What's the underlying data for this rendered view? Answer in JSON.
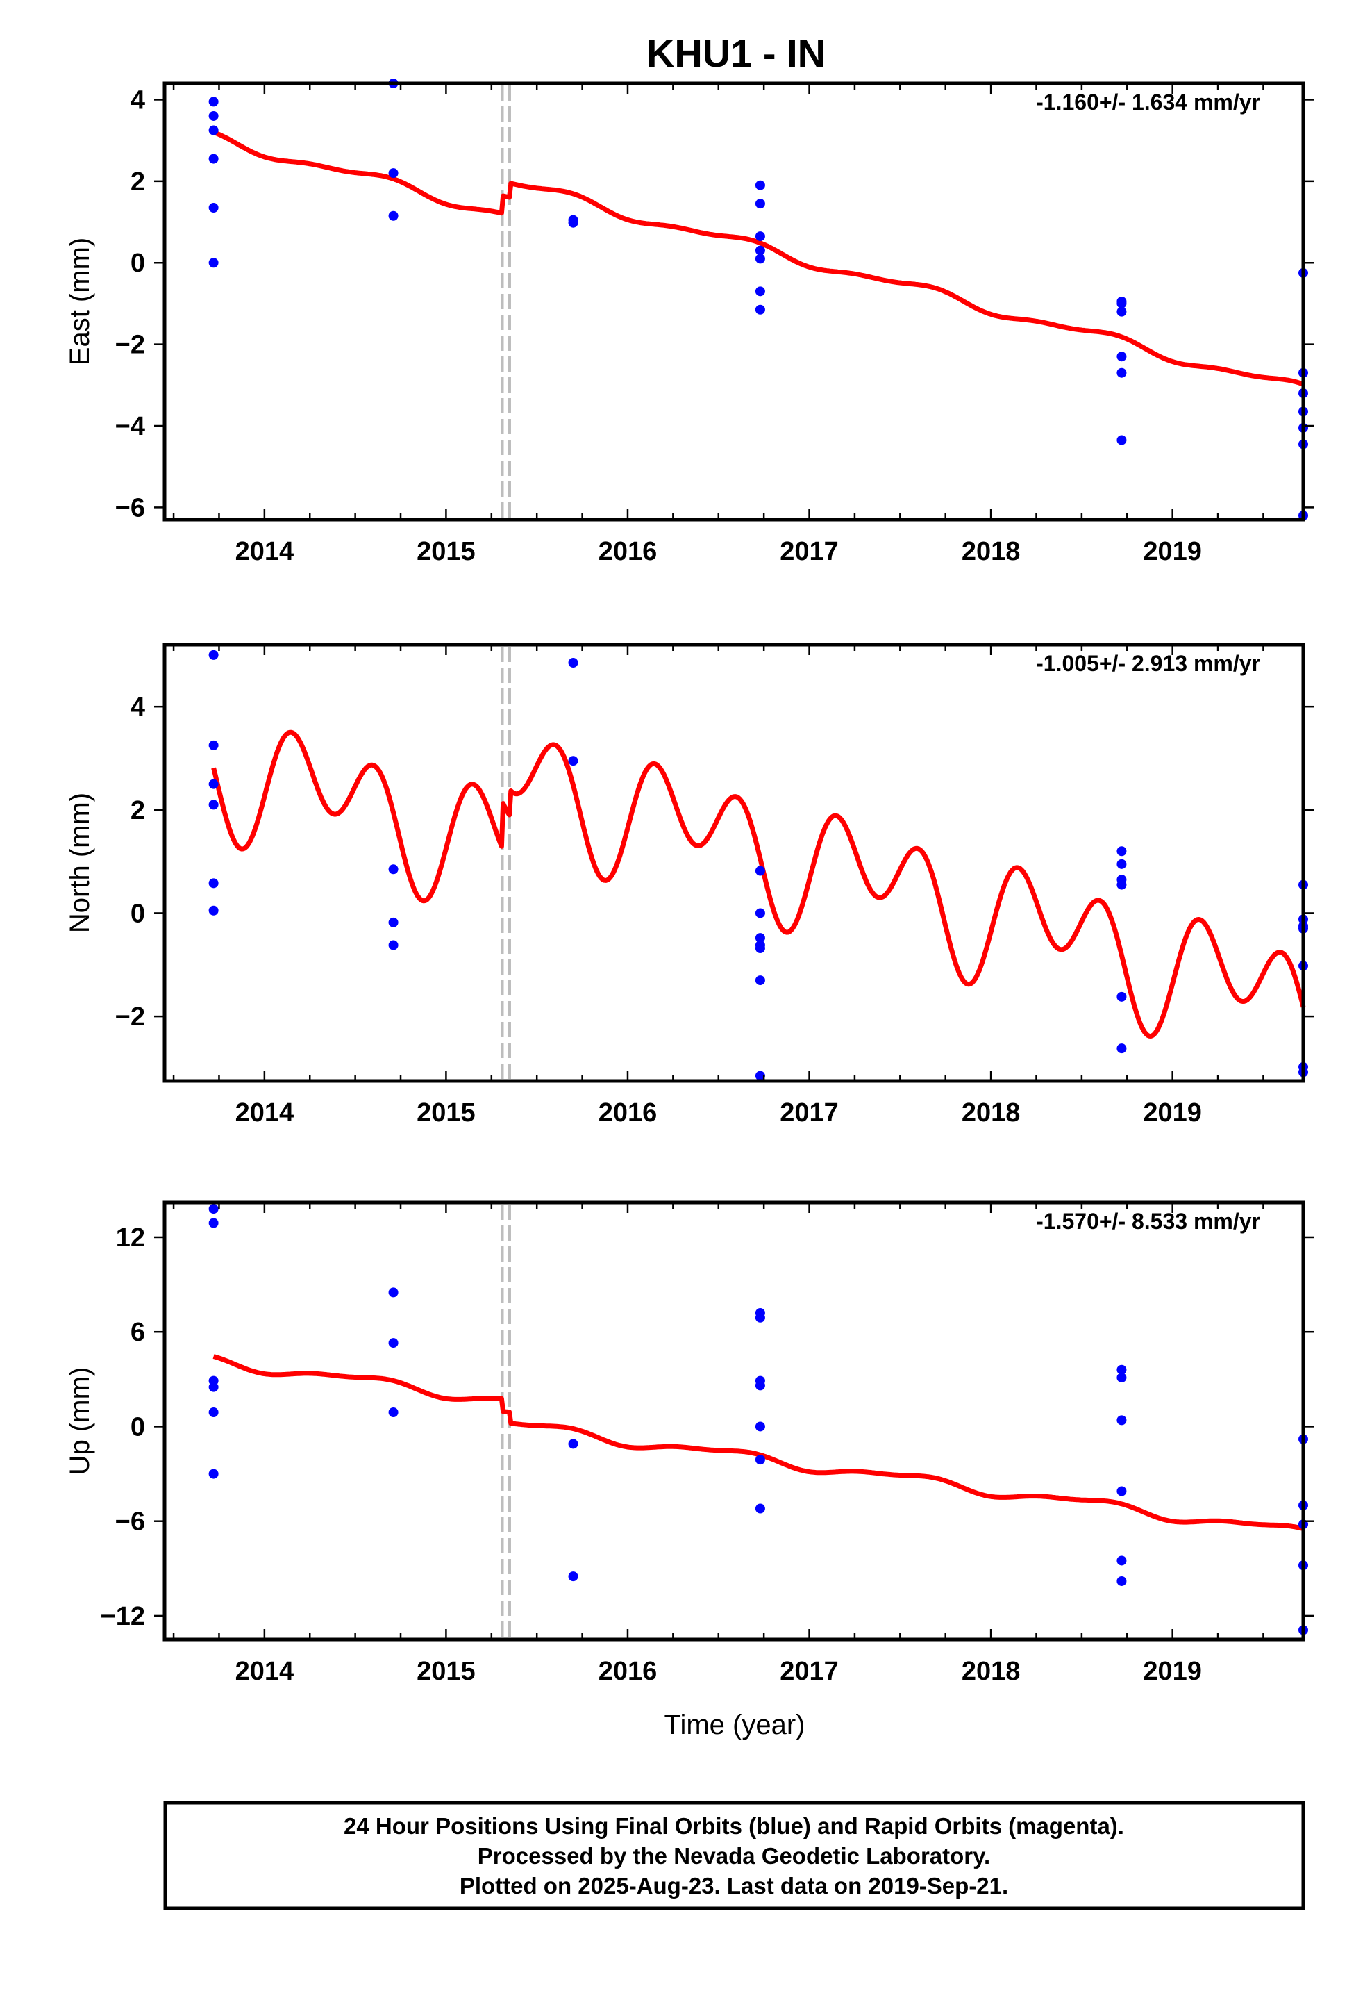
{
  "title": "KHU1 - IN",
  "x_axis_title": "Time (year)",
  "footer": {
    "line1": "24 Hour Positions Using Final Orbits (blue) and Rapid Orbits (magenta).",
    "line2": "Processed by the Nevada Geodetic Laboratory.",
    "line3": "Plotted on 2025-Aug-23. Last data on 2019-Sep-21."
  },
  "colors": {
    "data_points": "#0000ff",
    "model_line": "#ff0000",
    "offset_lines": "#bdbdbd"
  },
  "chart_data": [
    {
      "type": "scatter",
      "ylabel": "East (mm)",
      "rate": "-1.160+/- 1.634 mm/yr",
      "xlim": [
        2013.45,
        2019.72
      ],
      "ylim": [
        -6.3,
        4.4
      ],
      "xticks": [
        "2014",
        "2015",
        "2016",
        "2017",
        "2018",
        "2019"
      ],
      "yticks": [
        4,
        2,
        0,
        -2,
        -4,
        -6
      ],
      "ytick_labels": [
        "4",
        "2",
        "0",
        "−2",
        "−4",
        "−6"
      ],
      "grid": false,
      "offsets": [
        2015.31,
        2015.35
      ],
      "points": [
        [
          2013.72,
          3.95
        ],
        [
          2013.72,
          3.6
        ],
        [
          2013.72,
          3.25
        ],
        [
          2013.72,
          2.55
        ],
        [
          2013.72,
          1.35
        ],
        [
          2013.72,
          0.0
        ],
        [
          2014.71,
          4.4
        ],
        [
          2014.71,
          2.2
        ],
        [
          2014.71,
          1.15
        ],
        [
          2015.7,
          1.05
        ],
        [
          2015.7,
          0.98
        ],
        [
          2016.73,
          1.9
        ],
        [
          2016.73,
          1.45
        ],
        [
          2016.73,
          0.65
        ],
        [
          2016.73,
          0.3
        ],
        [
          2016.73,
          0.1
        ],
        [
          2016.73,
          -0.7
        ],
        [
          2016.73,
          -1.15
        ],
        [
          2018.72,
          -0.95
        ],
        [
          2018.72,
          -1.0
        ],
        [
          2018.72,
          -1.2
        ],
        [
          2018.72,
          -2.3
        ],
        [
          2018.72,
          -2.7
        ],
        [
          2018.72,
          -4.35
        ],
        [
          2019.72,
          -0.25
        ],
        [
          2019.72,
          -2.7
        ],
        [
          2019.72,
          -3.2
        ],
        [
          2019.72,
          -3.65
        ],
        [
          2019.72,
          -4.05
        ],
        [
          2019.72,
          -4.45
        ],
        [
          2019.72,
          -6.2
        ]
      ],
      "model": {
        "t_start": 2013.72,
        "t_end": 2019.72,
        "t_ref": 2016.0,
        "rate": -1.16,
        "segments": [
          {
            "from": 2013.72,
            "to": 2015.31,
            "offset": 0.42
          },
          {
            "from": 2015.31,
            "to": 2015.35,
            "offset": 0.85
          },
          {
            "from": 2015.35,
            "to": 2019.72,
            "offset": 1.2
          }
        ],
        "annual_amp": 0.12,
        "annual_phase": 0.35,
        "semi_amp": 0.05,
        "semi_phase": 0.1
      }
    },
    {
      "type": "scatter",
      "ylabel": "North (mm)",
      "rate": "-1.005+/- 2.913 mm/yr",
      "xlim": [
        2013.45,
        2019.72
      ],
      "ylim": [
        -3.25,
        5.2
      ],
      "xticks": [
        "2014",
        "2015",
        "2016",
        "2017",
        "2018",
        "2019"
      ],
      "yticks": [
        4,
        2,
        0,
        -2
      ],
      "ytick_labels": [
        "4",
        "2",
        "0",
        "−2"
      ],
      "grid": false,
      "offsets": [
        2015.31,
        2015.35
      ],
      "points": [
        [
          2013.72,
          5.0
        ],
        [
          2013.72,
          3.25
        ],
        [
          2013.72,
          2.5
        ],
        [
          2013.72,
          2.1
        ],
        [
          2013.72,
          0.58
        ],
        [
          2013.72,
          0.05
        ],
        [
          2014.71,
          0.85
        ],
        [
          2014.71,
          -0.18
        ],
        [
          2014.71,
          -0.62
        ],
        [
          2015.7,
          4.85
        ],
        [
          2015.7,
          2.95
        ],
        [
          2016.73,
          0.82
        ],
        [
          2016.73,
          0.0
        ],
        [
          2016.73,
          -0.48
        ],
        [
          2016.73,
          -0.62
        ],
        [
          2016.73,
          -0.68
        ],
        [
          2016.73,
          -1.3
        ],
        [
          2016.73,
          -3.15
        ],
        [
          2018.72,
          1.2
        ],
        [
          2018.72,
          0.95
        ],
        [
          2018.72,
          0.65
        ],
        [
          2018.72,
          0.55
        ],
        [
          2018.72,
          -1.62
        ],
        [
          2018.72,
          -2.62
        ],
        [
          2019.72,
          0.55
        ],
        [
          2019.72,
          -0.12
        ],
        [
          2019.72,
          -0.25
        ],
        [
          2019.72,
          -0.3
        ],
        [
          2019.72,
          -1.02
        ],
        [
          2019.72,
          -2.98
        ],
        [
          2019.72,
          -3.08
        ]
      ],
      "model": {
        "t_start": 2013.72,
        "t_end": 2019.72,
        "t_ref": 2016.0,
        "rate": -1.005,
        "segments": [
          {
            "from": 2013.72,
            "to": 2015.31,
            "offset": 0.6
          },
          {
            "from": 2015.31,
            "to": 2015.35,
            "offset": 1.5
          },
          {
            "from": 2015.35,
            "to": 2019.72,
            "offset": 2.0
          }
        ],
        "annual_amp": 0.6,
        "annual_phase": 0.1,
        "semi_amp": 0.9,
        "semi_phase": 0.0
      }
    },
    {
      "type": "scatter",
      "ylabel": "Up (mm)",
      "rate": "-1.570+/- 8.533 mm/yr",
      "xlim": [
        2013.45,
        2019.72
      ],
      "ylim": [
        -13.5,
        14.2
      ],
      "xticks": [
        "2014",
        "2015",
        "2016",
        "2017",
        "2018",
        "2019"
      ],
      "yticks": [
        12,
        6,
        0,
        -6,
        -12
      ],
      "ytick_labels": [
        "12",
        "6",
        "0",
        "−6",
        "−12"
      ],
      "grid": false,
      "offsets": [
        2015.31,
        2015.35
      ],
      "points": [
        [
          2013.72,
          13.8
        ],
        [
          2013.72,
          12.9
        ],
        [
          2013.72,
          2.9
        ],
        [
          2013.72,
          2.5
        ],
        [
          2013.72,
          0.9
        ],
        [
          2013.72,
          -3.0
        ],
        [
          2014.71,
          8.5
        ],
        [
          2014.71,
          5.3
        ],
        [
          2014.71,
          0.9
        ],
        [
          2015.7,
          -1.1
        ],
        [
          2015.7,
          -9.5
        ],
        [
          2016.73,
          7.2
        ],
        [
          2016.73,
          6.9
        ],
        [
          2016.73,
          2.9
        ],
        [
          2016.73,
          2.6
        ],
        [
          2016.73,
          0.0
        ],
        [
          2016.73,
          -2.1
        ],
        [
          2016.73,
          -5.2
        ],
        [
          2018.72,
          3.6
        ],
        [
          2018.72,
          3.1
        ],
        [
          2018.72,
          0.4
        ],
        [
          2018.72,
          -4.1
        ],
        [
          2018.72,
          -8.5
        ],
        [
          2018.72,
          -9.8
        ],
        [
          2019.72,
          -0.8
        ],
        [
          2019.72,
          -5.0
        ],
        [
          2019.72,
          -6.2
        ],
        [
          2019.72,
          -8.8
        ],
        [
          2019.72,
          -12.9
        ]
      ],
      "model": {
        "t_start": 2013.72,
        "t_end": 2019.72,
        "t_ref": 2016.0,
        "rate": -1.57,
        "segments": [
          {
            "from": 2013.72,
            "to": 2015.31,
            "offset": 0.6
          },
          {
            "from": 2015.31,
            "to": 2015.35,
            "offset": -0.2
          },
          {
            "from": 2015.35,
            "to": 2019.72,
            "offset": -0.9
          }
        ],
        "annual_amp": 0.3,
        "annual_phase": 0.3,
        "semi_amp": 0.12,
        "semi_phase": 0.1
      }
    }
  ]
}
